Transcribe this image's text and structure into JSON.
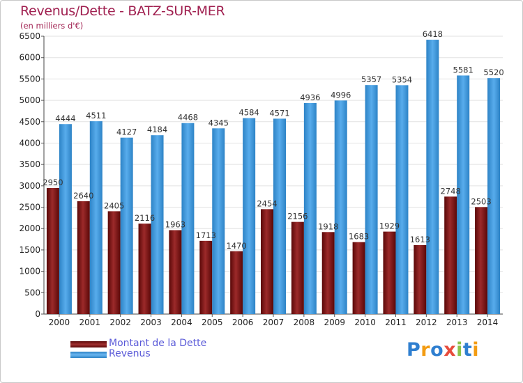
{
  "title": "Revenus/Dette - BATZ-SUR-MER",
  "subtitle": "(en milliers d'€)",
  "logo_text": "Proxiti",
  "colors": {
    "dette": "#8b1e1e",
    "revenus": "#3a96de",
    "title": "#a02050"
  },
  "chart_data": {
    "type": "bar",
    "categories": [
      "2000",
      "2001",
      "2002",
      "2003",
      "2004",
      "2005",
      "2006",
      "2007",
      "2008",
      "2009",
      "2010",
      "2011",
      "2012",
      "2013",
      "2014"
    ],
    "series": [
      {
        "name": "Montant de la Dette",
        "values": [
          2950,
          2640,
          2405,
          2116,
          1963,
          1713,
          1470,
          2454,
          2156,
          1918,
          1683,
          1929,
          1613,
          2748,
          2503
        ],
        "labels": [
          "2950",
          "2640",
          "2405",
          "2116",
          "1963",
          "1713",
          "1470",
          "2454",
          "2156",
          "1918",
          "1683",
          "1929",
          "1613",
          "2748",
          "2503"
        ]
      },
      {
        "name": "Revenus",
        "values": [
          4444,
          4511,
          4127,
          4184,
          4468,
          4345,
          4584,
          4571,
          4936,
          4996,
          5357,
          5354,
          6418,
          5581,
          5520
        ],
        "labels": [
          "4444",
          "4511",
          "4127",
          "4184",
          "4468",
          "4345",
          "4584",
          "4571",
          "4936",
          "4996",
          "5357",
          "5354",
          "6418",
          "5581",
          "5520"
        ]
      }
    ],
    "yticks": [
      "0",
      "500",
      "1000",
      "1500",
      "2000",
      "2500",
      "3000",
      "3500",
      "4000",
      "4500",
      "5000",
      "5500",
      "6000",
      "6500"
    ],
    "ylim": [
      0,
      6500
    ],
    "grid": true,
    "legend_position": "bottom-left"
  }
}
